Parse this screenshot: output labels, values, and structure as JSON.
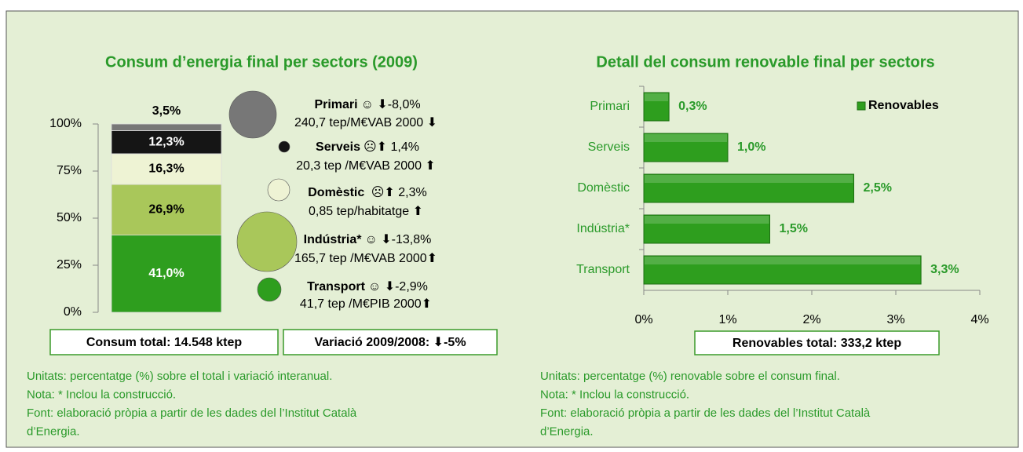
{
  "chart_data": [
    {
      "type": "stacked_bar",
      "title": "Consum d’energia final per sectors (2009)",
      "series": [
        {
          "name": "Transport",
          "color": "#2e9e1e",
          "values": [
            41.0
          ],
          "value_labels": [
            "41,0%"
          ],
          "change": "☺ ⬇-2,9%",
          "detail": "41,7 tep /M€PIB 2000⬆"
        },
        {
          "name": "Indústria*",
          "color": "#a9c75a",
          "values": [
            26.9
          ],
          "value_labels": [
            "26,9%"
          ],
          "change": "☺ ⬇-13,8%",
          "detail": "165,7 tep /M€VAB 2000⬆"
        },
        {
          "name": "Domèstic",
          "color": "#eef3d4",
          "values": [
            16.3
          ],
          "value_labels": [
            "16,3%"
          ],
          "change": " ☹⬆ 2,3%",
          "detail": "0,85 tep/habitatge ⬆"
        },
        {
          "name": "Serveis",
          "color": "#151515",
          "values": [
            12.3
          ],
          "value_labels": [
            "12,3%"
          ],
          "change": "☹⬆ 1,4%",
          "detail": "20,3 tep /M€VAB 2000 ⬆"
        },
        {
          "name": "Primari",
          "color": "#777777",
          "values": [
            3.5
          ],
          "value_labels": [
            "3,5%"
          ],
          "change": "☺ ⬇-8,0%",
          "detail": "240,7 tep/M€VAB 2000 ⬇"
        }
      ],
      "ylim": [
        0,
        100
      ],
      "yticks": [
        {
          "value": 0,
          "label": "0%"
        },
        {
          "value": 25,
          "label": "25%"
        },
        {
          "value": 50,
          "label": "50%"
        },
        {
          "value": 75,
          "label": "75%"
        },
        {
          "value": 100,
          "label": "100%"
        }
      ],
      "boxes": [
        "Consum total: 14.548 ktep",
        "Variació 2009/2008: ⬇-5%"
      ],
      "notes": [
        "Unitats: percentatge (%) sobre el total i variació interanual.",
        "Nota: * Inclou la construcció.",
        "Font: elaboració pròpia a partir de les dades del l’Institut Català",
        "d’Energia."
      ]
    },
    {
      "type": "hbar",
      "title": "Detall del consum renovable final per sectors",
      "categories": [
        "Primari",
        "Serveis",
        "Domèstic",
        "Indústria*",
        "Transport"
      ],
      "series": [
        {
          "name": "Renovables",
          "color": "#2e9e1e",
          "values": [
            0.3,
            1.0,
            2.5,
            1.5,
            3.3
          ],
          "value_labels": [
            "0,3%",
            "1,0%",
            "2,5%",
            "1,5%",
            "3,3%"
          ]
        }
      ],
      "xlim": [
        0,
        4
      ],
      "xticks": [
        {
          "value": 0,
          "label": "0%"
        },
        {
          "value": 1,
          "label": "1%"
        },
        {
          "value": 2,
          "label": "2%"
        },
        {
          "value": 3,
          "label": "3%"
        },
        {
          "value": 4,
          "label": "4%"
        }
      ],
      "legend": "upper right",
      "boxes": [
        "Renovables total: 333,2 ktep"
      ],
      "notes": [
        "Unitats: percentatge (%) renovable sobre el consum final.",
        "Nota: * Inclou la construcció.",
        "Font: elaboració pròpia a partir de les dades del l’Institut Català",
        "d’Energia."
      ]
    }
  ]
}
